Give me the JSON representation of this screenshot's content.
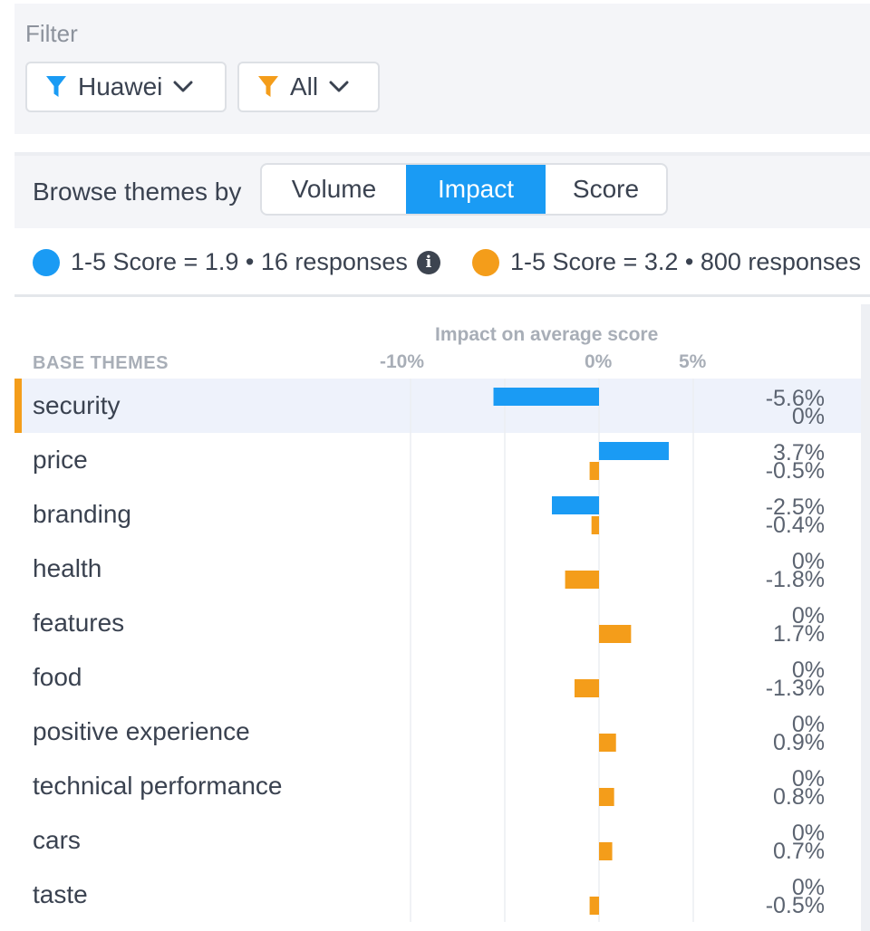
{
  "filter": {
    "title": "Filter",
    "buttons": [
      {
        "label": "Huawei",
        "icon": "filter-icon",
        "color": "#1a9bf4"
      },
      {
        "label": "All",
        "icon": "filter-icon",
        "color": "#f49d1a"
      }
    ]
  },
  "browse": {
    "label": "Browse themes by",
    "options": [
      "Volume",
      "Impact",
      "Score"
    ],
    "active": "Impact"
  },
  "legend": {
    "series1": {
      "text": "1-5 Score = 1.9 • 16 responses",
      "color": "#1a9bf4"
    },
    "series2": {
      "text": "1-5 Score = 3.2 • 800 responses",
      "color": "#f49d1a"
    }
  },
  "table": {
    "column_title": "BASE THEMES",
    "selected": "security"
  },
  "chart_data": {
    "type": "bar",
    "title": "Impact on average score",
    "xlim": [
      -10,
      5
    ],
    "tick_values": [
      -10,
      0,
      5
    ],
    "tick_labels": [
      "-10%",
      "0%",
      "5%"
    ],
    "grid": true,
    "categories": [
      "security",
      "price",
      "branding",
      "health",
      "features",
      "food",
      "positive experience",
      "technical performance",
      "cars",
      "taste"
    ],
    "series": [
      {
        "name": "1-5 Score = 1.9 • 16 responses",
        "color": "#1a9bf4",
        "values": [
          -5.6,
          3.7,
          -2.5,
          0,
          0,
          0,
          0,
          0,
          0,
          0
        ],
        "labels": [
          "-5.6%",
          "3.7%",
          "-2.5%",
          "0%",
          "0%",
          "0%",
          "0%",
          "0%",
          "0%",
          "0%"
        ]
      },
      {
        "name": "1-5 Score = 3.2 • 800 responses",
        "color": "#f49d1a",
        "values": [
          0,
          -0.5,
          -0.4,
          -1.8,
          1.7,
          -1.3,
          0.9,
          0.8,
          0.7,
          -0.5
        ],
        "labels": [
          "0%",
          "-0.5%",
          "-0.4%",
          "-1.8%",
          "1.7%",
          "-1.3%",
          "0.9%",
          "0.8%",
          "0.7%",
          "-0.5%"
        ]
      }
    ]
  }
}
